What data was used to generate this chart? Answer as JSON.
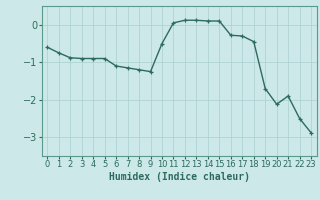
{
  "x": [
    0,
    1,
    2,
    3,
    4,
    5,
    6,
    7,
    8,
    9,
    10,
    11,
    12,
    13,
    14,
    15,
    16,
    17,
    18,
    19,
    20,
    21,
    22,
    23
  ],
  "y": [
    -0.6,
    -0.75,
    -0.88,
    -0.9,
    -0.9,
    -0.9,
    -1.1,
    -1.15,
    -1.2,
    -1.25,
    -0.5,
    0.05,
    0.12,
    0.12,
    0.1,
    0.1,
    -0.28,
    -0.3,
    -0.45,
    -1.7,
    -2.12,
    -1.9,
    -2.5,
    -2.88
  ],
  "line_color": "#2d6b5e",
  "marker": "+",
  "markersize": 3.5,
  "linewidth": 1.0,
  "bg_color": "#cce8e8",
  "grid_color": "#aacfcf",
  "xlabel": "Humidex (Indice chaleur)",
  "xlim": [
    -0.5,
    23.5
  ],
  "ylim": [
    -3.5,
    0.5
  ],
  "yticks": [
    0,
    -1,
    -2,
    -3
  ],
  "xticks": [
    0,
    1,
    2,
    3,
    4,
    5,
    6,
    7,
    8,
    9,
    10,
    11,
    12,
    13,
    14,
    15,
    16,
    17,
    18,
    19,
    20,
    21,
    22,
    23
  ],
  "xlabel_fontsize": 7,
  "tick_fontsize": 6,
  "ytick_fontsize": 7,
  "tick_color": "#2d6b5e",
  "axis_color": "#2d6b5e",
  "spine_color": "#5a9a8a"
}
